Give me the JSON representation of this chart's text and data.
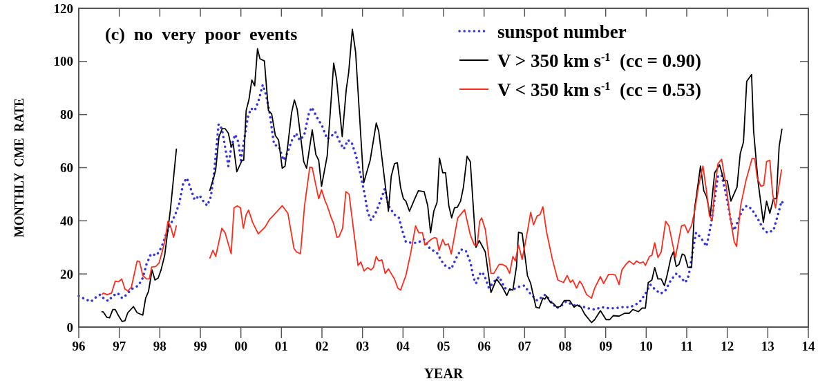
{
  "chart_data": {
    "type": "line",
    "xlabel": "YEAR",
    "ylabel": "MONTHLY  CME  RATE",
    "annotations": [
      "(c)  no  very  poor  events"
    ],
    "xlim": [
      1996,
      2014
    ],
    "ylim": [
      0,
      120
    ],
    "xticks": [
      {
        "value": 1996,
        "label": "96"
      },
      {
        "value": 1997,
        "label": "97"
      },
      {
        "value": 1998,
        "label": "98"
      },
      {
        "value": 1999,
        "label": "99"
      },
      {
        "value": 2000,
        "label": "00"
      },
      {
        "value": 2001,
        "label": "01"
      },
      {
        "value": 2002,
        "label": "02"
      },
      {
        "value": 2003,
        "label": "03"
      },
      {
        "value": 2004,
        "label": "04"
      },
      {
        "value": 2005,
        "label": "05"
      },
      {
        "value": 2006,
        "label": "06"
      },
      {
        "value": 2007,
        "label": "07"
      },
      {
        "value": 2008,
        "label": "08"
      },
      {
        "value": 2009,
        "label": "09"
      },
      {
        "value": 2010,
        "label": "10"
      },
      {
        "value": 2011,
        "label": "11"
      },
      {
        "value": 2012,
        "label": "12"
      },
      {
        "value": 2013,
        "label": "13"
      },
      {
        "value": 2014,
        "label": "14"
      }
    ],
    "yticks": [
      0,
      20,
      40,
      60,
      80,
      100,
      120
    ],
    "grid": false,
    "legend": "top right",
    "series": [
      {
        "name": "sunspot number",
        "color": "#3333e6",
        "line_style": "dotted",
        "x": [
          1996.0,
          1996.16,
          1996.3,
          1996.43,
          1996.53,
          1996.61,
          1996.73,
          1996.84,
          1996.96,
          1997.07,
          1997.18,
          1997.3,
          1997.47,
          1997.58,
          1997.67,
          1997.78,
          1997.92,
          1998.04,
          1998.15,
          1998.26,
          1998.38,
          1998.48,
          1998.58,
          1998.67,
          1998.78,
          1998.86,
          1998.98,
          1999.09,
          1999.17,
          1999.26,
          1999.34,
          1999.45,
          1999.53,
          1999.6,
          1999.69,
          1999.77,
          1999.86,
          1999.94,
          2000.0,
          2000.08,
          2000.17,
          2000.25,
          2000.34,
          2000.43,
          2000.54,
          2000.62,
          2000.71,
          2000.77,
          2000.82,
          2000.94,
          2001.05,
          2001.14,
          2001.25,
          2001.36,
          2001.45,
          2001.56,
          2001.68,
          2001.75,
          2001.88,
          2002.01,
          2002.13,
          2002.22,
          2002.33,
          2002.44,
          2002.54,
          2002.64,
          2002.73,
          2002.84,
          2002.96,
          2003.04,
          2003.13,
          2003.21,
          2003.33,
          2003.44,
          2003.55,
          2003.64,
          2003.79,
          2003.9,
          2003.98,
          2004.07,
          2004.21,
          2004.35,
          2004.52,
          2004.66,
          2004.84,
          2004.95,
          2005.06,
          2005.19,
          2005.32,
          2005.43,
          2005.55,
          2005.66,
          2005.74,
          2005.8,
          2005.92,
          2006.0,
          2006.12,
          2006.26,
          2006.37,
          2006.51,
          2006.68,
          2006.85,
          2006.99,
          2007.14,
          2007.31,
          2007.51,
          2007.65,
          2007.79,
          2007.93,
          2008.02,
          2008.19,
          2008.39,
          2008.56,
          2008.73,
          2008.9,
          2009.07,
          2009.24,
          2009.41,
          2009.59,
          2009.73,
          2009.87,
          2009.98,
          2010.1,
          2010.21,
          2010.35,
          2010.46,
          2010.61,
          2010.75,
          2010.86,
          2010.97,
          2011.05,
          2011.14,
          2011.23,
          2011.34,
          2011.49,
          2011.6,
          2011.69,
          2011.77,
          2011.86,
          2011.97,
          2012.09,
          2012.17,
          2012.26,
          2012.37,
          2012.48,
          2012.6,
          2012.74,
          2012.88,
          2012.99,
          2013.14,
          2013.25,
          2013.34,
          2013.42
        ],
        "values": [
          11.7,
          10.5,
          9.6,
          11.3,
          12.2,
          10.9,
          9.8,
          11.7,
          12.8,
          10.9,
          12.2,
          14.3,
          15.6,
          18.5,
          23.6,
          27.5,
          27,
          30,
          34.7,
          38.5,
          42.3,
          46.6,
          54.3,
          56.1,
          51.3,
          47.9,
          49.6,
          47,
          45.7,
          49.1,
          58.5,
          76.4,
          74.7,
          68.7,
          60.6,
          68.4,
          72.5,
          69.6,
          62.8,
          70.4,
          78.9,
          82.3,
          81.5,
          84.9,
          91.2,
          87.4,
          80.6,
          73.8,
          68.7,
          67.9,
          62.8,
          65.3,
          70,
          73,
          70.4,
          72.1,
          80.6,
          82.7,
          78.9,
          75.5,
          70.8,
          71.7,
          73.4,
          69.6,
          67,
          70.4,
          69.6,
          64.5,
          56.8,
          50.9,
          43.2,
          40.2,
          43.2,
          47.4,
          52.1,
          45.7,
          42.3,
          41.1,
          36.4,
          32.1,
          31.7,
          31.7,
          33,
          29.6,
          27.9,
          24.9,
          22.8,
          21.9,
          26.2,
          29.2,
          28.7,
          24.5,
          18.5,
          16.4,
          20.7,
          19.8,
          14.7,
          17.3,
          19,
          14.7,
          13.9,
          15.1,
          15.6,
          12.6,
          10,
          12.2,
          9.6,
          7.1,
          8.3,
          9.6,
          8.3,
          7.9,
          7.1,
          6.6,
          7.5,
          7.1,
          7.1,
          7.5,
          7.5,
          8.3,
          10,
          12.6,
          16,
          14.3,
          12.6,
          13.4,
          17.7,
          20.2,
          18.5,
          16.8,
          19.4,
          27.9,
          35.5,
          33.8,
          30.4,
          38.9,
          48.3,
          56.8,
          57.2,
          50,
          39.8,
          36.4,
          39.8,
          44,
          45.7,
          44.5,
          41.1,
          37.2,
          35.5,
          36.4,
          42.3,
          47.4,
          45.7
        ]
      },
      {
        "name": "V > 350 km s$^{-1}$  (cc = 0.90)",
        "color": "#000000",
        "line_style": "solid",
        "x": [
          1996.56,
          1996.61,
          1996.69,
          1996.76,
          1996.84,
          1996.9,
          1996.98,
          1997.07,
          1997.14,
          1997.21,
          1997.35,
          1997.44,
          1997.58,
          1997.65,
          1997.72,
          1997.81,
          1997.88,
          1997.96,
          1998.03,
          1998.12,
          1998.26,
          1998.41,
          1998.8,
          1999.23,
          1999.34,
          1999.38,
          1999.46,
          1999.54,
          1999.61,
          1999.69,
          1999.76,
          1999.81,
          1999.9,
          2000.03,
          2000.07,
          2000.13,
          2000.2,
          2000.27,
          2000.34,
          2000.41,
          2000.47,
          2000.58,
          2000.68,
          2000.76,
          2000.85,
          2000.93,
          2001.02,
          2001.09,
          2001.16,
          2001.25,
          2001.32,
          2001.39,
          2001.46,
          2001.55,
          2001.62,
          2001.76,
          2001.85,
          2001.92,
          2001.99,
          2002.13,
          2002.29,
          2002.36,
          2002.5,
          2002.6,
          2002.66,
          2002.75,
          2002.83,
          2003.03,
          2003.19,
          2003.34,
          2003.4,
          2003.64,
          2003.71,
          2003.79,
          2003.86,
          2003.94,
          2004.01,
          2004.07,
          2004.16,
          2004.29,
          2004.38,
          2004.52,
          2004.61,
          2004.68,
          2004.76,
          2004.84,
          2004.9,
          2004.98,
          2005.05,
          2005.13,
          2005.2,
          2005.27,
          2005.34,
          2005.42,
          2005.49,
          2005.58,
          2005.66,
          2005.8,
          2005.88,
          2006.03,
          2006.17,
          2006.31,
          2006.45,
          2006.56,
          2006.63,
          2006.71,
          2006.8,
          2006.85,
          2006.94,
          2007.07,
          2007.15,
          2007.28,
          2007.36,
          2007.45,
          2007.5,
          2007.54,
          2007.64,
          2007.7,
          2007.79,
          2007.88,
          2007.98,
          2008.05,
          2008.11,
          2008.22,
          2008.3,
          2008.39,
          2008.48,
          2008.65,
          2008.73,
          2008.87,
          2009.01,
          2009.1,
          2009.19,
          2009.33,
          2009.47,
          2009.58,
          2009.67,
          2009.81,
          2009.9,
          2009.98,
          2010.05,
          2010.14,
          2010.21,
          2010.29,
          2010.37,
          2010.45,
          2010.52,
          2010.61,
          2010.67,
          2010.74,
          2010.81,
          2010.89,
          2010.95,
          2011.03,
          2011.12,
          2011.19,
          2011.34,
          2011.42,
          2011.49,
          2011.58,
          2011.69,
          2011.81,
          2011.92,
          2012.0,
          2012.09,
          2012.2,
          2012.24,
          2012.32,
          2012.4,
          2012.48,
          2012.6,
          2012.65,
          2012.76,
          2012.89,
          2012.97,
          2013.05,
          2013.14,
          2013.21,
          2013.28,
          2013.35
        ],
        "values": [
          5.8,
          5.6,
          3.7,
          3.5,
          6.6,
          6.6,
          4.3,
          2.1,
          2.4,
          5.4,
          7.7,
          5.4,
          4.5,
          10.9,
          13.4,
          21.5,
          17.7,
          18.5,
          21.5,
          27,
          44,
          67.2,
          null,
          51.3,
          56.8,
          59.4,
          71.7,
          74.7,
          74.7,
          73,
          68,
          69.1,
          58.5,
          62.8,
          62.8,
          81.5,
          85.7,
          93,
          90.8,
          104.8,
          101,
          100.2,
          81.5,
          80.2,
          72.1,
          70.4,
          59.8,
          60.6,
          68.7,
          80.6,
          85.5,
          81.9,
          73.4,
          62.3,
          59.8,
          74.2,
          64.9,
          62.8,
          53,
          64.5,
          99.3,
          93.4,
          71.7,
          89.5,
          95.9,
          112.1,
          103.6,
          54.3,
          62.8,
          76.8,
          73.8,
          43.6,
          56.8,
          61.5,
          61.9,
          52.6,
          48.3,
          47.4,
          43.6,
          48.3,
          51.3,
          51,
          45.7,
          35.5,
          43.6,
          47,
          63.6,
          58.1,
          58.1,
          45.7,
          41.1,
          44.9,
          45.1,
          47.4,
          52.6,
          64.3,
          62.3,
          30,
          32.6,
          28.3,
          13,
          18.1,
          15.1,
          11.9,
          14.3,
          13.9,
          22.8,
          35.7,
          35.3,
          19.4,
          16.4,
          7.5,
          7.1,
          10.9,
          10.5,
          11.7,
          9.2,
          9,
          7.5,
          7.7,
          10,
          10,
          10,
          7.5,
          8.3,
          7.5,
          4.9,
          1.7,
          2.8,
          6.2,
          2.8,
          2.8,
          4.3,
          4.1,
          5.2,
          5.2,
          6.6,
          5.8,
          7.2,
          7.1,
          16.7,
          17.7,
          22.4,
          18.1,
          18.1,
          15.6,
          19.8,
          26.2,
          28.3,
          22.8,
          23.6,
          27.5,
          27,
          22.5,
          22.4,
          44,
          60.6,
          51.3,
          49.1,
          41.9,
          58.1,
          61.1,
          55.1,
          55.1,
          47.4,
          51.3,
          52.6,
          65.3,
          69.6,
          92.5,
          95.1,
          73.8,
          54.7,
          39.4,
          47.4,
          42.8,
          48.3,
          48.3,
          67.9,
          74.7
        ]
      },
      {
        "name": "V < 350 km s$^{-1}$  (cc = 0.53)",
        "color": "#ff2a1a",
        "line_style": "solid",
        "x": [
          1996.57,
          1996.61,
          1996.7,
          1996.81,
          1996.9,
          1996.98,
          1997.06,
          1997.14,
          1997.21,
          1997.3,
          1997.44,
          1997.5,
          1997.58,
          1997.67,
          1997.74,
          1997.8,
          1997.9,
          1997.98,
          1998.05,
          1998.12,
          1998.2,
          1998.27,
          1998.34,
          1998.41,
          1998.8,
          1999.23,
          1999.31,
          1999.38,
          1999.53,
          1999.61,
          1999.76,
          1999.83,
          1999.91,
          1999.99,
          2000.06,
          2000.13,
          2000.19,
          2000.29,
          2000.43,
          2000.6,
          2000.71,
          2000.85,
          2001.02,
          2001.16,
          2001.31,
          2001.37,
          2001.47,
          2001.57,
          2001.7,
          2001.76,
          2001.85,
          2001.92,
          2001.99,
          2002.08,
          2002.13,
          2002.22,
          2002.29,
          2002.37,
          2002.42,
          2002.51,
          2002.59,
          2002.67,
          2002.89,
          2002.96,
          2003.04,
          2003.13,
          2003.21,
          2003.27,
          2003.34,
          2003.4,
          2003.48,
          2003.56,
          2003.64,
          2003.79,
          2003.87,
          2003.94,
          2004.07,
          2004.19,
          2004.31,
          2004.39,
          2004.48,
          2004.54,
          2004.69,
          2004.78,
          2004.83,
          2004.89,
          2004.98,
          2005.04,
          2005.12,
          2005.19,
          2005.35,
          2005.52,
          2005.66,
          2005.76,
          2005.83,
          2005.89,
          2005.94,
          2006.03,
          2006.17,
          2006.24,
          2006.37,
          2006.45,
          2006.55,
          2006.63,
          2006.71,
          2006.77,
          2006.85,
          2006.94,
          2007.07,
          2007.15,
          2007.22,
          2007.31,
          2007.38,
          2007.45,
          2007.54,
          2007.68,
          2007.82,
          2007.96,
          2008.05,
          2008.13,
          2008.19,
          2008.28,
          2008.36,
          2008.42,
          2008.53,
          2008.65,
          2008.73,
          2008.87,
          2008.95,
          2009.07,
          2009.15,
          2009.24,
          2009.33,
          2009.4,
          2009.5,
          2009.58,
          2009.69,
          2009.76,
          2009.84,
          2009.93,
          2009.98,
          2010.08,
          2010.14,
          2010.21,
          2010.29,
          2010.37,
          2010.48,
          2010.56,
          2010.72,
          2010.87,
          2010.95,
          2011.03,
          2011.12,
          2011.2,
          2011.29,
          2011.4,
          2011.49,
          2011.56,
          2011.63,
          2011.69,
          2011.77,
          2011.86,
          2011.97,
          2012.07,
          2012.17,
          2012.23,
          2012.33,
          2012.46,
          2012.61,
          2012.68,
          2012.74,
          2012.83,
          2012.9,
          2012.97,
          2013.05,
          2013.12,
          2013.19,
          2013.27,
          2013.34
        ],
        "values": [
          12.2,
          12.8,
          12.2,
          12.8,
          17.3,
          17,
          18.1,
          14.3,
          13.6,
          15.1,
          24.9,
          24.7,
          19.4,
          18.1,
          18.1,
          22.6,
          22.8,
          24.1,
          27.9,
          32.1,
          39.8,
          37.7,
          33.8,
          38.3,
          null,
          25.8,
          28.9,
          26.6,
          37.2,
          35.5,
          27.6,
          44.9,
          45.6,
          44.9,
          37.2,
          42.3,
          44,
          39.4,
          35.1,
          37.7,
          40.6,
          42.8,
          45.7,
          42.8,
          29.6,
          28.3,
          27.6,
          45.6,
          60.2,
          60,
          53.4,
          48.3,
          51.7,
          47.4,
          45.7,
          41.5,
          38.9,
          33.8,
          34,
          37.2,
          51,
          50,
          23.2,
          24.5,
          21.1,
          22.4,
          21.5,
          22.4,
          26.6,
          24.9,
          25.3,
          20.2,
          21.9,
          18.1,
          14.7,
          13.9,
          19.4,
          27.9,
          38.1,
          35.5,
          35.5,
          30.9,
          33,
          33.7,
          33.4,
          28.9,
          33,
          30.9,
          31.3,
          27.5,
          41.1,
          44.2,
          34.7,
          30.9,
          30.9,
          39.8,
          41.1,
          36.8,
          20.2,
          20.2,
          23.6,
          23.6,
          22.8,
          20.2,
          26.6,
          24.9,
          30.9,
          25.5,
          36,
          43.2,
          38.5,
          41.9,
          42.3,
          45.3,
          36,
          25.8,
          17.7,
          16.8,
          19.4,
          16.8,
          17.7,
          14.7,
          17.3,
          16,
          12.2,
          10.9,
          14.7,
          19,
          16.4,
          19.8,
          19.8,
          19.6,
          16,
          21.5,
          23.6,
          24.9,
          23.6,
          24.9,
          24.1,
          24.5,
          23.2,
          26.6,
          27,
          31.7,
          26.2,
          28.3,
          39.8,
          38.1,
          26.2,
          38.1,
          38.5,
          35.5,
          38.3,
          44,
          53,
          60.6,
          50.9,
          41.9,
          40.2,
          51.7,
          61.5,
          63.2,
          53.4,
          41.5,
          32.1,
          30.4,
          45.7,
          55.1,
          63.4,
          63.4,
          56,
          53,
          53.4,
          62.3,
          62.8,
          50,
          44.9,
          52.6,
          59.4
        ]
      }
    ]
  }
}
